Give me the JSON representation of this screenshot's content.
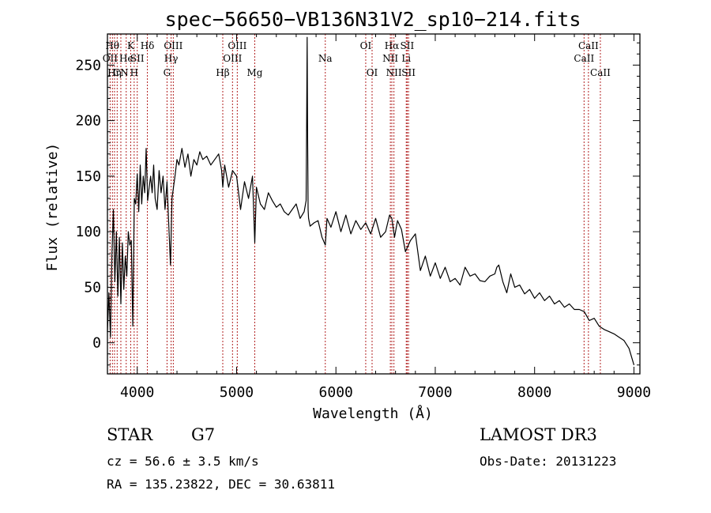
{
  "colors": {
    "line_marker": "#b22222",
    "spectrum": "#000000",
    "axes": "#000000"
  },
  "chart_data": {
    "type": "line",
    "title": "spec−56650−VB136N31V2_sp10−214.fits",
    "xlabel": "Wavelength (Å)",
    "ylabel": "Flux (relative)",
    "xlim": [
      3700,
      9060
    ],
    "ylim": [
      -28,
      278
    ],
    "xticks": [
      4000,
      5000,
      6000,
      7000,
      8000,
      9000
    ],
    "yticks": [
      0,
      50,
      100,
      150,
      200,
      250
    ],
    "series": [
      {
        "name": "spectrum",
        "x": [
          3700,
          3715,
          3730,
          3745,
          3760,
          3775,
          3790,
          3805,
          3820,
          3835,
          3850,
          3865,
          3880,
          3895,
          3910,
          3925,
          3940,
          3955,
          3970,
          3985,
          4000,
          4015,
          4030,
          4045,
          4060,
          4075,
          4090,
          4105,
          4120,
          4135,
          4150,
          4165,
          4180,
          4200,
          4220,
          4240,
          4260,
          4280,
          4300,
          4320,
          4335,
          4350,
          4365,
          4380,
          4400,
          4420,
          4450,
          4480,
          4510,
          4540,
          4570,
          4600,
          4630,
          4660,
          4700,
          4740,
          4780,
          4820,
          4850,
          4861,
          4880,
          4920,
          4960,
          5000,
          5040,
          5080,
          5120,
          5160,
          5183,
          5200,
          5240,
          5280,
          5320,
          5360,
          5400,
          5440,
          5480,
          5520,
          5560,
          5600,
          5640,
          5680,
          5700,
          5705,
          5710,
          5715,
          5720,
          5725,
          5740,
          5780,
          5820,
          5860,
          5893,
          5910,
          5950,
          6000,
          6050,
          6100,
          6150,
          6200,
          6250,
          6300,
          6350,
          6400,
          6450,
          6500,
          6540,
          6563,
          6590,
          6620,
          6660,
          6700,
          6750,
          6800,
          6850,
          6900,
          6950,
          7000,
          7050,
          7100,
          7150,
          7200,
          7250,
          7300,
          7350,
          7400,
          7450,
          7500,
          7550,
          7600,
          7620,
          7640,
          7680,
          7720,
          7760,
          7800,
          7850,
          7900,
          7950,
          8000,
          8050,
          8100,
          8150,
          8200,
          8250,
          8300,
          8350,
          8400,
          8450,
          8500,
          8550,
          8600,
          8650,
          8700,
          8750,
          8800,
          8850,
          8900,
          8950,
          9000
        ],
        "values": [
          10,
          45,
          5,
          80,
          120,
          55,
          100,
          42,
          95,
          35,
          90,
          48,
          78,
          60,
          100,
          88,
          92,
          15,
          130,
          125,
          152,
          118,
          160,
          125,
          150,
          135,
          175,
          128,
          140,
          150,
          135,
          160,
          130,
          120,
          155,
          135,
          150,
          120,
          145,
          100,
          70,
          130,
          140,
          150,
          165,
          160,
          175,
          158,
          170,
          150,
          165,
          160,
          172,
          165,
          168,
          160,
          165,
          170,
          155,
          140,
          160,
          140,
          155,
          150,
          120,
          145,
          130,
          150,
          90,
          140,
          125,
          120,
          135,
          128,
          122,
          125,
          118,
          115,
          120,
          125,
          112,
          118,
          128,
          190,
          275,
          185,
          120,
          112,
          105,
          108,
          110,
          95,
          88,
          112,
          104,
          118,
          100,
          115,
          98,
          110,
          102,
          108,
          98,
          112,
          95,
          100,
          115,
          112,
          95,
          110,
          102,
          82,
          92,
          98,
          65,
          78,
          60,
          72,
          58,
          68,
          55,
          58,
          52,
          68,
          60,
          62,
          56,
          55,
          60,
          62,
          68,
          70,
          55,
          45,
          62,
          50,
          52,
          44,
          48,
          40,
          45,
          38,
          42,
          35,
          38,
          32,
          35,
          30,
          30,
          28,
          20,
          22,
          15,
          12,
          10,
          8,
          5,
          2,
          -5,
          -20
        ]
      }
    ],
    "line_markers": [
      {
        "wave": 3750,
        "row": 1,
        "label": "Hθ"
      },
      {
        "wave": 3727,
        "row": 2,
        "label": "OII"
      },
      {
        "wave": 3771,
        "row": 3,
        "label": "Hη"
      },
      {
        "wave": 3798,
        "row": 1,
        "label": ""
      },
      {
        "wave": 3835,
        "row": 3,
        "label": "CN"
      },
      {
        "wave": 3889,
        "row": 2,
        "label": "He"
      },
      {
        "wave": 3934,
        "row": 1,
        "label": "K"
      },
      {
        "wave": 3969,
        "row": 3,
        "label": "H"
      },
      {
        "wave": 4000,
        "row": 2,
        "label": "SII"
      },
      {
        "wave": 4102,
        "row": 1,
        "label": "Hδ"
      },
      {
        "wave": 4300,
        "row": 3,
        "label": "G"
      },
      {
        "wave": 4341,
        "row": 2,
        "label": "Hγ"
      },
      {
        "wave": 4363,
        "row": 1,
        "label": "OIII"
      },
      {
        "wave": 4861,
        "row": 3,
        "label": "Hβ"
      },
      {
        "wave": 4959,
        "row": 2,
        "label": "OIII"
      },
      {
        "wave": 5007,
        "row": 1,
        "label": "OIII"
      },
      {
        "wave": 5183,
        "row": 3,
        "label": "Mg"
      },
      {
        "wave": 5893,
        "row": 2,
        "label": "Na"
      },
      {
        "wave": 6300,
        "row": 1,
        "label": "OI"
      },
      {
        "wave": 6364,
        "row": 3,
        "label": "OI"
      },
      {
        "wave": 6548,
        "row": 2,
        "label": "NII"
      },
      {
        "wave": 6563,
        "row": 1,
        "label": "Hα"
      },
      {
        "wave": 6584,
        "row": 3,
        "label": "NII"
      },
      {
        "wave": 6708,
        "row": 2,
        "label": "Li"
      },
      {
        "wave": 6717,
        "row": 1,
        "label": "SII"
      },
      {
        "wave": 6731,
        "row": 3,
        "label": "SII"
      },
      {
        "wave": 8498,
        "row": 2,
        "label": "CaII"
      },
      {
        "wave": 8542,
        "row": 1,
        "label": "CaII"
      },
      {
        "wave": 8662,
        "row": 3,
        "label": "CaII"
      }
    ]
  },
  "info": {
    "class_label": "STAR",
    "subclass": "G7",
    "survey": "LAMOST DR3",
    "cz": "cz = 56.6 ± 3.5 km/s",
    "obs_date": "Obs-Date: 20131223",
    "radec": "RA = 135.23822, DEC =  30.63811"
  }
}
